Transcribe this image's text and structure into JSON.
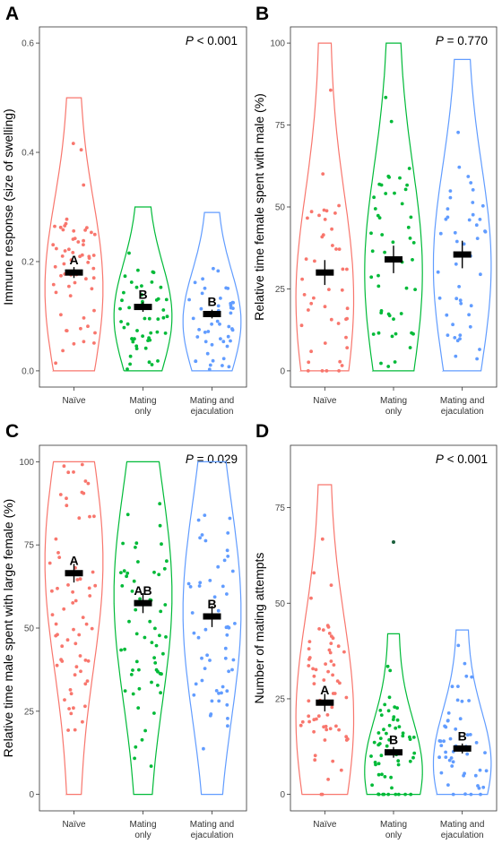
{
  "figure": {
    "panel_letters": [
      "A",
      "B",
      "C",
      "D"
    ]
  },
  "chart_data": [
    {
      "panel": "A",
      "type": "violin",
      "title": "",
      "xlabel": "",
      "ylabel": "Immune response (size of swelling)",
      "p_label": "P",
      "p_text": " < 0.001",
      "ylim": [
        0,
        0.6
      ],
      "yticks": [
        0.0,
        0.2,
        0.4,
        0.6
      ],
      "ytick_labels": [
        "0.0",
        "0.2",
        "0.4",
        "0.6"
      ],
      "categories": [
        "Naïve",
        "Mating only",
        "Mating and ejaculation"
      ],
      "category_label_lines": [
        [
          "Naïve"
        ],
        [
          "Mating",
          "only"
        ],
        [
          "Mating and",
          "ejaculation"
        ]
      ],
      "colors": [
        "#f8766d",
        "#00ba38",
        "#619cff"
      ],
      "means": [
        0.18,
        0.117,
        0.104
      ],
      "se": [
        0.01,
        0.009,
        0.008
      ],
      "letters": [
        "A",
        "B",
        "B"
      ],
      "ranges": [
        [
          0.0,
          0.5
        ],
        [
          0.0,
          0.3
        ],
        [
          0.0,
          0.29
        ]
      ],
      "medians": [
        0.15,
        0.1,
        0.09
      ],
      "n": [
        60,
        50,
        50
      ],
      "outliers": []
    },
    {
      "panel": "B",
      "type": "violin",
      "title": "",
      "xlabel": "",
      "ylabel": "Relative time female spent with male (%)",
      "p_label": "P",
      "p_text": " = 0.770",
      "ylim": [
        0,
        100
      ],
      "yticks": [
        0,
        25,
        50,
        75,
        100
      ],
      "ytick_labels": [
        "0",
        "25",
        "50",
        "75",
        "100"
      ],
      "categories": [
        "Naïve",
        "Mating only",
        "Mating and ejaculation"
      ],
      "category_label_lines": [
        [
          "Naïve"
        ],
        [
          "Mating",
          "only"
        ],
        [
          "Mating and",
          "ejaculation"
        ]
      ],
      "colors": [
        "#f8766d",
        "#00ba38",
        "#619cff"
      ],
      "means": [
        30,
        34,
        35.5
      ],
      "se": [
        3.8,
        4.2,
        4.2
      ],
      "letters": [
        "",
        "",
        ""
      ],
      "ranges": [
        [
          0,
          100
        ],
        [
          0,
          100
        ],
        [
          0,
          95
        ]
      ],
      "medians": [
        22,
        30,
        32
      ],
      "n": [
        45,
        50,
        45
      ],
      "outliers": []
    },
    {
      "panel": "C",
      "type": "violin",
      "title": "",
      "xlabel": "",
      "ylabel": "Relative time male spent with large female (%)",
      "p_label": "P",
      "p_text": " = 0.029",
      "ylim": [
        0,
        100
      ],
      "yticks": [
        0,
        25,
        50,
        75,
        100
      ],
      "ytick_labels": [
        "0",
        "25",
        "50",
        "75",
        "100"
      ],
      "categories": [
        "Naïve",
        "Mating only",
        "Mating and ejaculation"
      ],
      "category_label_lines": [
        [
          "Naïve"
        ],
        [
          "Mating",
          "only"
        ],
        [
          "Mating and",
          "ejaculation"
        ]
      ],
      "colors": [
        "#f8766d",
        "#00ba38",
        "#619cff"
      ],
      "means": [
        66.5,
        57.5,
        53.5
      ],
      "se": [
        2.8,
        3.0,
        3.2
      ],
      "letters": [
        "A",
        "AB",
        "B"
      ],
      "ranges": [
        [
          0,
          100
        ],
        [
          0,
          100
        ],
        [
          0,
          100
        ]
      ],
      "medians": [
        70,
        60,
        55
      ],
      "n": [
        65,
        60,
        55
      ],
      "outliers": []
    },
    {
      "panel": "D",
      "type": "violin",
      "title": "",
      "xlabel": "",
      "ylabel": "Number of mating attempts",
      "p_label": "P",
      "p_text": " < 0.001",
      "ylim": [
        0,
        87
      ],
      "yticks": [
        0,
        25,
        50,
        75
      ],
      "ytick_labels": [
        "0",
        "25",
        "50",
        "75"
      ],
      "categories": [
        "Naïve",
        "Mating only",
        "Mating and ejaculation"
      ],
      "category_label_lines": [
        [
          "Naïve"
        ],
        [
          "Mating",
          "only"
        ],
        [
          "Mating and",
          "ejaculation"
        ]
      ],
      "colors": [
        "#f8766d",
        "#00ba38",
        "#619cff"
      ],
      "means": [
        24,
        11,
        12
      ],
      "se": [
        2.3,
        1.4,
        1.3
      ],
      "letters": [
        "A",
        "B",
        "B"
      ],
      "ranges": [
        [
          0,
          81
        ],
        [
          0,
          42
        ],
        [
          0,
          43
        ]
      ],
      "medians": [
        20,
        6,
        8
      ],
      "n": [
        65,
        55,
        50
      ],
      "outliers": [
        {
          "group": 1,
          "y": 66,
          "color": "#1a5f3c"
        }
      ]
    }
  ]
}
